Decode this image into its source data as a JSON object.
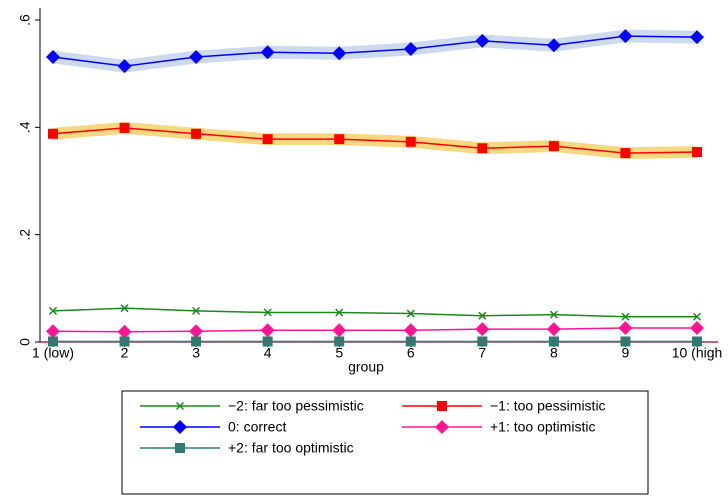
{
  "chart_data": {
    "type": "line",
    "x_label": "group",
    "categories": [
      "1 (low)",
      "2",
      "3",
      "4",
      "5",
      "6",
      "7",
      "8",
      "9",
      "10 (high"
    ],
    "ylim": [
      0,
      0.6
    ],
    "yticks": [
      0,
      {
        "value": 0.2,
        "label": ".2"
      },
      {
        "value": 0.4,
        "label": ".4"
      },
      {
        "value": 0.6,
        "label": ".6"
      }
    ],
    "reference_line": {
      "value": 0,
      "color": "#a0001a"
    },
    "series": [
      {
        "name": "−2: far too pessimistic",
        "color": "#1a8a1a",
        "marker": "x",
        "values": [
          0.058,
          0.063,
          0.058,
          0.055,
          0.055,
          0.053,
          0.049,
          0.051,
          0.047,
          0.047
        ]
      },
      {
        "name": "−1: too pessimistic",
        "color": "#ff0000",
        "marker": "square",
        "band_color": "#f6d880",
        "values": [
          0.388,
          0.399,
          0.388,
          0.378,
          0.378,
          0.373,
          0.361,
          0.365,
          0.352,
          0.354
        ],
        "ci_lower": [
          0.377,
          0.388,
          0.377,
          0.367,
          0.367,
          0.362,
          0.35,
          0.354,
          0.341,
          0.343
        ],
        "ci_upper": [
          0.399,
          0.41,
          0.399,
          0.389,
          0.389,
          0.384,
          0.372,
          0.376,
          0.363,
          0.365
        ]
      },
      {
        "name": "0: correct",
        "color": "#0000ff",
        "marker": "diamond",
        "band_color": "#cdd9ee",
        "values": [
          0.531,
          0.514,
          0.531,
          0.54,
          0.538,
          0.546,
          0.561,
          0.553,
          0.57,
          0.568
        ],
        "ci_lower": [
          0.519,
          0.502,
          0.519,
          0.528,
          0.526,
          0.534,
          0.549,
          0.541,
          0.558,
          0.556
        ],
        "ci_upper": [
          0.543,
          0.526,
          0.543,
          0.552,
          0.55,
          0.558,
          0.573,
          0.565,
          0.582,
          0.58
        ]
      },
      {
        "name": "+1: too optimistic",
        "color": "#ff1493",
        "marker": "diamond",
        "values": [
          0.02,
          0.019,
          0.02,
          0.022,
          0.022,
          0.022,
          0.024,
          0.024,
          0.026,
          0.026
        ]
      },
      {
        "name": "+2: far too optimistic",
        "color": "#2e7b73",
        "marker": "square",
        "values": [
          0.001,
          0.001,
          0.001,
          0.001,
          0.001,
          0.001,
          0.001,
          0.001,
          0.001,
          0.001
        ]
      }
    ]
  }
}
